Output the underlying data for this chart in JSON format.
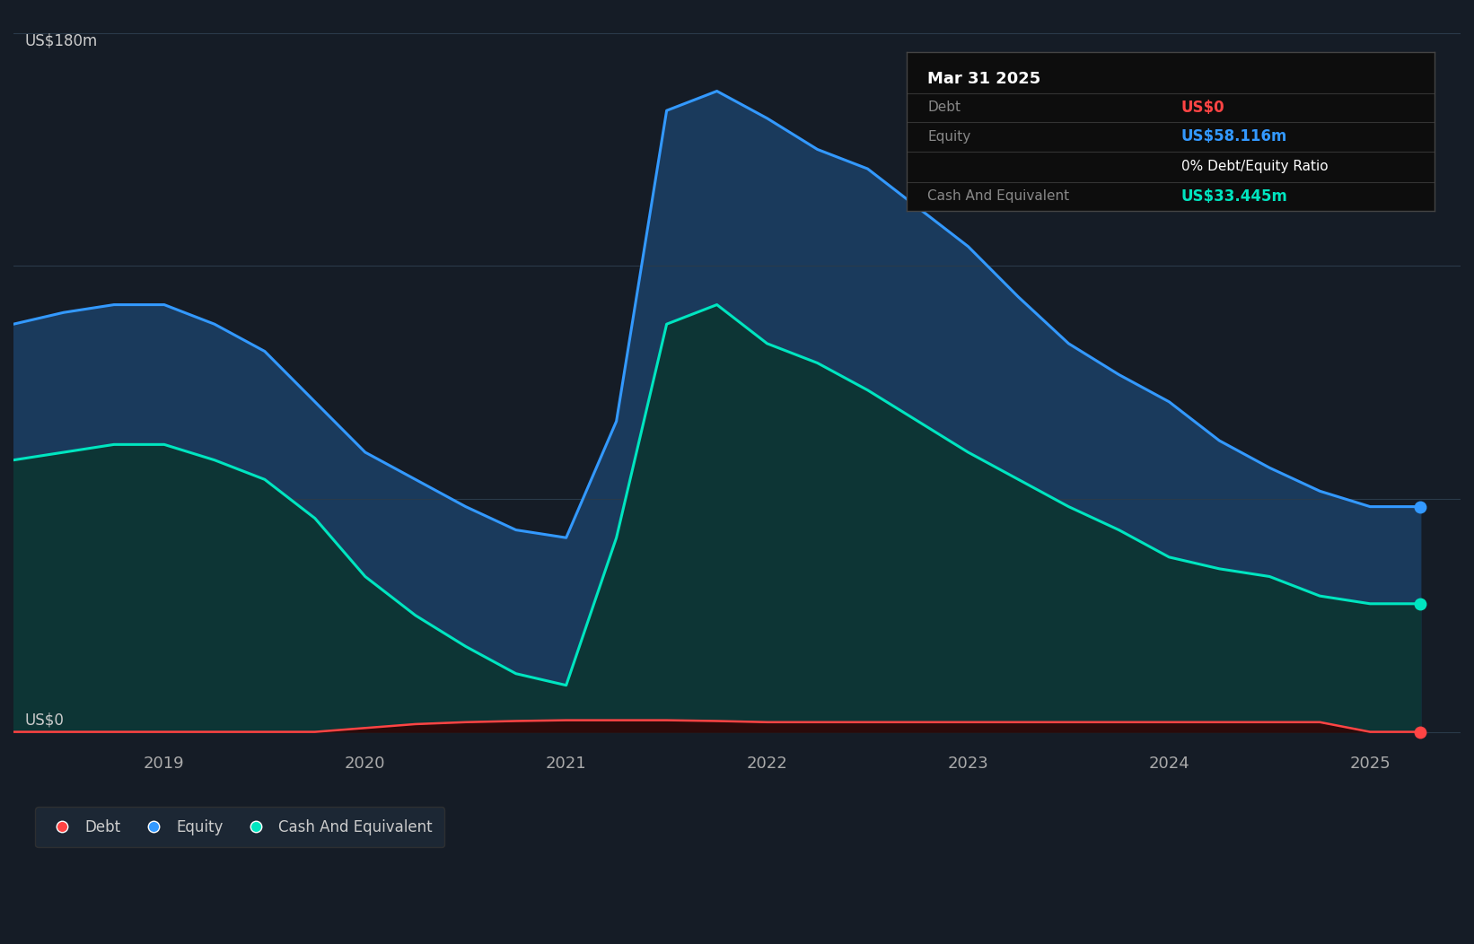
{
  "background_color": "#151c26",
  "plot_bg_color": "#151c26",
  "y_label_top": "US$180m",
  "y_label_bottom": "US$0",
  "x_ticks": [
    2019,
    2020,
    2021,
    2022,
    2023,
    2024,
    2025
  ],
  "ylim": [
    -5,
    185
  ],
  "equity_color": "#3399ff",
  "equity_fill": "#1a3a5c",
  "cash_color": "#00e5c0",
  "cash_fill": "#0d3535",
  "debt_color": "#ff4444",
  "grid_color": "#2a3a4a",
  "tooltip_title": "Mar 31 2025",
  "tooltip_debt_label": "Debt",
  "tooltip_debt_value": "US$0",
  "tooltip_debt_color": "#ff4444",
  "tooltip_equity_label": "Equity",
  "tooltip_equity_value": "US$58.116m",
  "tooltip_equity_color": "#3399ff",
  "tooltip_de_ratio": "0% Debt/Equity Ratio",
  "tooltip_cash_label": "Cash And Equivalent",
  "tooltip_cash_value": "US$33.445m",
  "tooltip_cash_color": "#00e5c0",
  "legend_debt_label": "Debt",
  "legend_equity_label": "Equity",
  "legend_cash_label": "Cash And Equivalent",
  "time_points": [
    2018.25,
    2018.5,
    2018.75,
    2019.0,
    2019.25,
    2019.5,
    2019.75,
    2020.0,
    2020.25,
    2020.5,
    2020.75,
    2021.0,
    2021.25,
    2021.5,
    2021.75,
    2022.0,
    2022.25,
    2022.5,
    2022.75,
    2023.0,
    2023.25,
    2023.5,
    2023.75,
    2024.0,
    2024.25,
    2024.5,
    2024.75,
    2025.0,
    2025.25
  ],
  "equity_values": [
    105,
    108,
    110,
    110,
    105,
    98,
    85,
    72,
    65,
    58,
    52,
    50,
    80,
    160,
    165,
    158,
    150,
    145,
    135,
    125,
    112,
    100,
    92,
    85,
    75,
    68,
    62,
    58,
    58
  ],
  "cash_values": [
    70,
    72,
    74,
    74,
    70,
    65,
    55,
    40,
    30,
    22,
    15,
    12,
    50,
    105,
    110,
    100,
    95,
    88,
    80,
    72,
    65,
    58,
    52,
    45,
    42,
    40,
    35,
    33,
    33
  ],
  "debt_values": [
    0,
    0,
    0,
    0,
    0,
    0,
    0,
    1,
    2,
    2.5,
    2.8,
    3,
    3,
    3,
    2.8,
    2.5,
    2.5,
    2.5,
    2.5,
    2.5,
    2.5,
    2.5,
    2.5,
    2.5,
    2.5,
    2.5,
    2.5,
    0,
    0
  ]
}
